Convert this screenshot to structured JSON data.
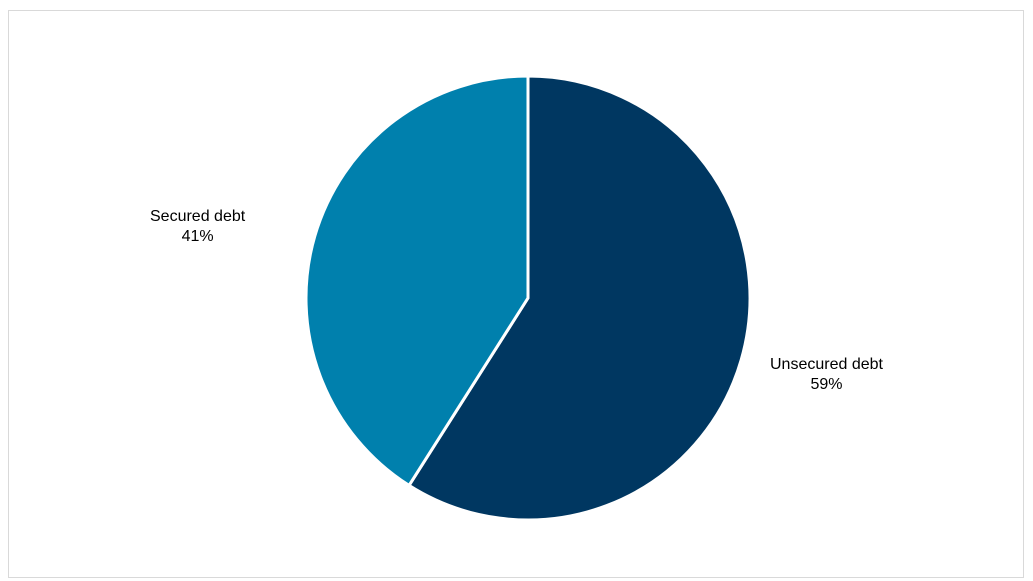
{
  "chart_data": {
    "type": "pie",
    "slices": [
      {
        "name": "Unsecured debt",
        "value": 59,
        "label": "59%",
        "color": "#003761"
      },
      {
        "name": "Secured debt",
        "value": 41,
        "label": "41%",
        "color": "#0080ad"
      }
    ],
    "start_angle_deg": 0,
    "direction": "clockwise",
    "legend": "none"
  }
}
